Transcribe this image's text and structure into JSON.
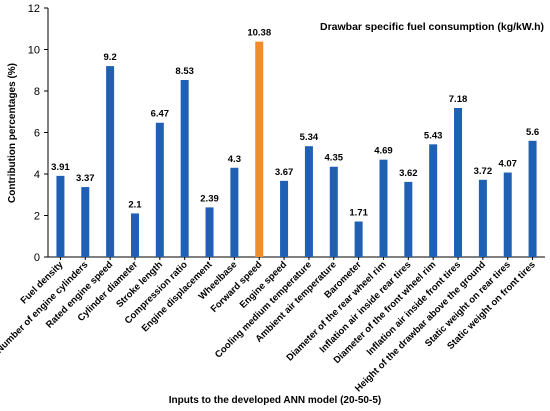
{
  "chart_data": {
    "type": "bar",
    "title": "Drawbar specific fuel consumption (kg/kW.h)",
    "xlabel": "Inputs to the developed ANN model (20-50-5)",
    "ylabel": "Contribution percentages  (%)",
    "ylim": [
      0,
      12
    ],
    "yticks": [
      "0",
      "2",
      "4",
      "6",
      "8",
      "10",
      "12"
    ],
    "grid": false,
    "categories": [
      "Fuel density",
      "Number of engine cylinders",
      "Rated engine speed",
      "Cylinder diameter",
      "Stroke length",
      "Compression ratio",
      "Engine displacement",
      "Wheelbase",
      "Forward speed",
      "Engine speed",
      "Cooling medium temperature",
      "Ambient air temperature",
      "Barometer",
      "Diameter of the rear wheel rim",
      "Inflation air inside rear tires",
      "Diameter of the front wheel rim",
      "Inflation air inside front tires",
      "Height of the drawbar above the ground",
      "Static weight on rear tires",
      "Static weight on front tires"
    ],
    "values": [
      3.91,
      3.37,
      9.2,
      2.1,
      6.47,
      8.53,
      2.39,
      4.3,
      10.38,
      3.67,
      5.34,
      4.35,
      1.71,
      4.69,
      3.62,
      5.43,
      7.18,
      3.72,
      4.07,
      5.6
    ],
    "value_labels": [
      "3.91",
      "3.37",
      "9.2",
      "2.1",
      "6.47",
      "8.53",
      "2.39",
      "4.3",
      "10.38",
      "3.67",
      "5.34",
      "4.35",
      "1.71",
      "4.69",
      "3.62",
      "5.43",
      "7.18",
      "3.72",
      "4.07",
      "5.6"
    ],
    "colors": {
      "default": "#1f5fb4",
      "highlight": "#f28c28"
    },
    "highlight_index": 8
  }
}
